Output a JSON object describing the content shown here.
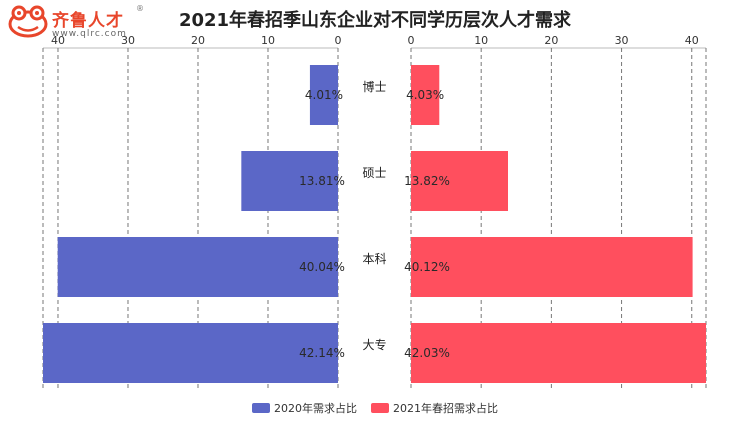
{
  "logo": {
    "brand": "齐鲁人才",
    "reg_mark": "®",
    "url": "www.qlrc.com"
  },
  "chart_data": {
    "type": "bar",
    "orientation": "horizontal-butterfly",
    "title": "2021年春招季山东企业对不同学历层次人才需求",
    "categories": [
      "博士",
      "硕士",
      "本科",
      "大专"
    ],
    "left_axis": {
      "ticks": [
        40,
        30,
        20,
        10,
        0
      ],
      "range": [
        0,
        42.14
      ]
    },
    "right_axis": {
      "ticks": [
        0,
        10,
        20,
        30,
        40
      ],
      "range": [
        0,
        42.03
      ]
    },
    "grid": true,
    "legend_position": "bottom-center",
    "series": [
      {
        "name": "2020年需求占比",
        "side": "left",
        "color": "#5b67c7",
        "values": [
          4.01,
          13.81,
          40.04,
          42.14
        ],
        "labels": [
          "4.01%",
          "13.81%",
          "40.04%",
          "42.14%"
        ]
      },
      {
        "name": "2021年春招需求占比",
        "side": "right",
        "color": "#ff4f5e",
        "values": [
          4.03,
          13.82,
          40.12,
          42.03
        ],
        "labels": [
          "4.03%",
          "13.82%",
          "40.12%",
          "42.03%"
        ]
      }
    ]
  }
}
